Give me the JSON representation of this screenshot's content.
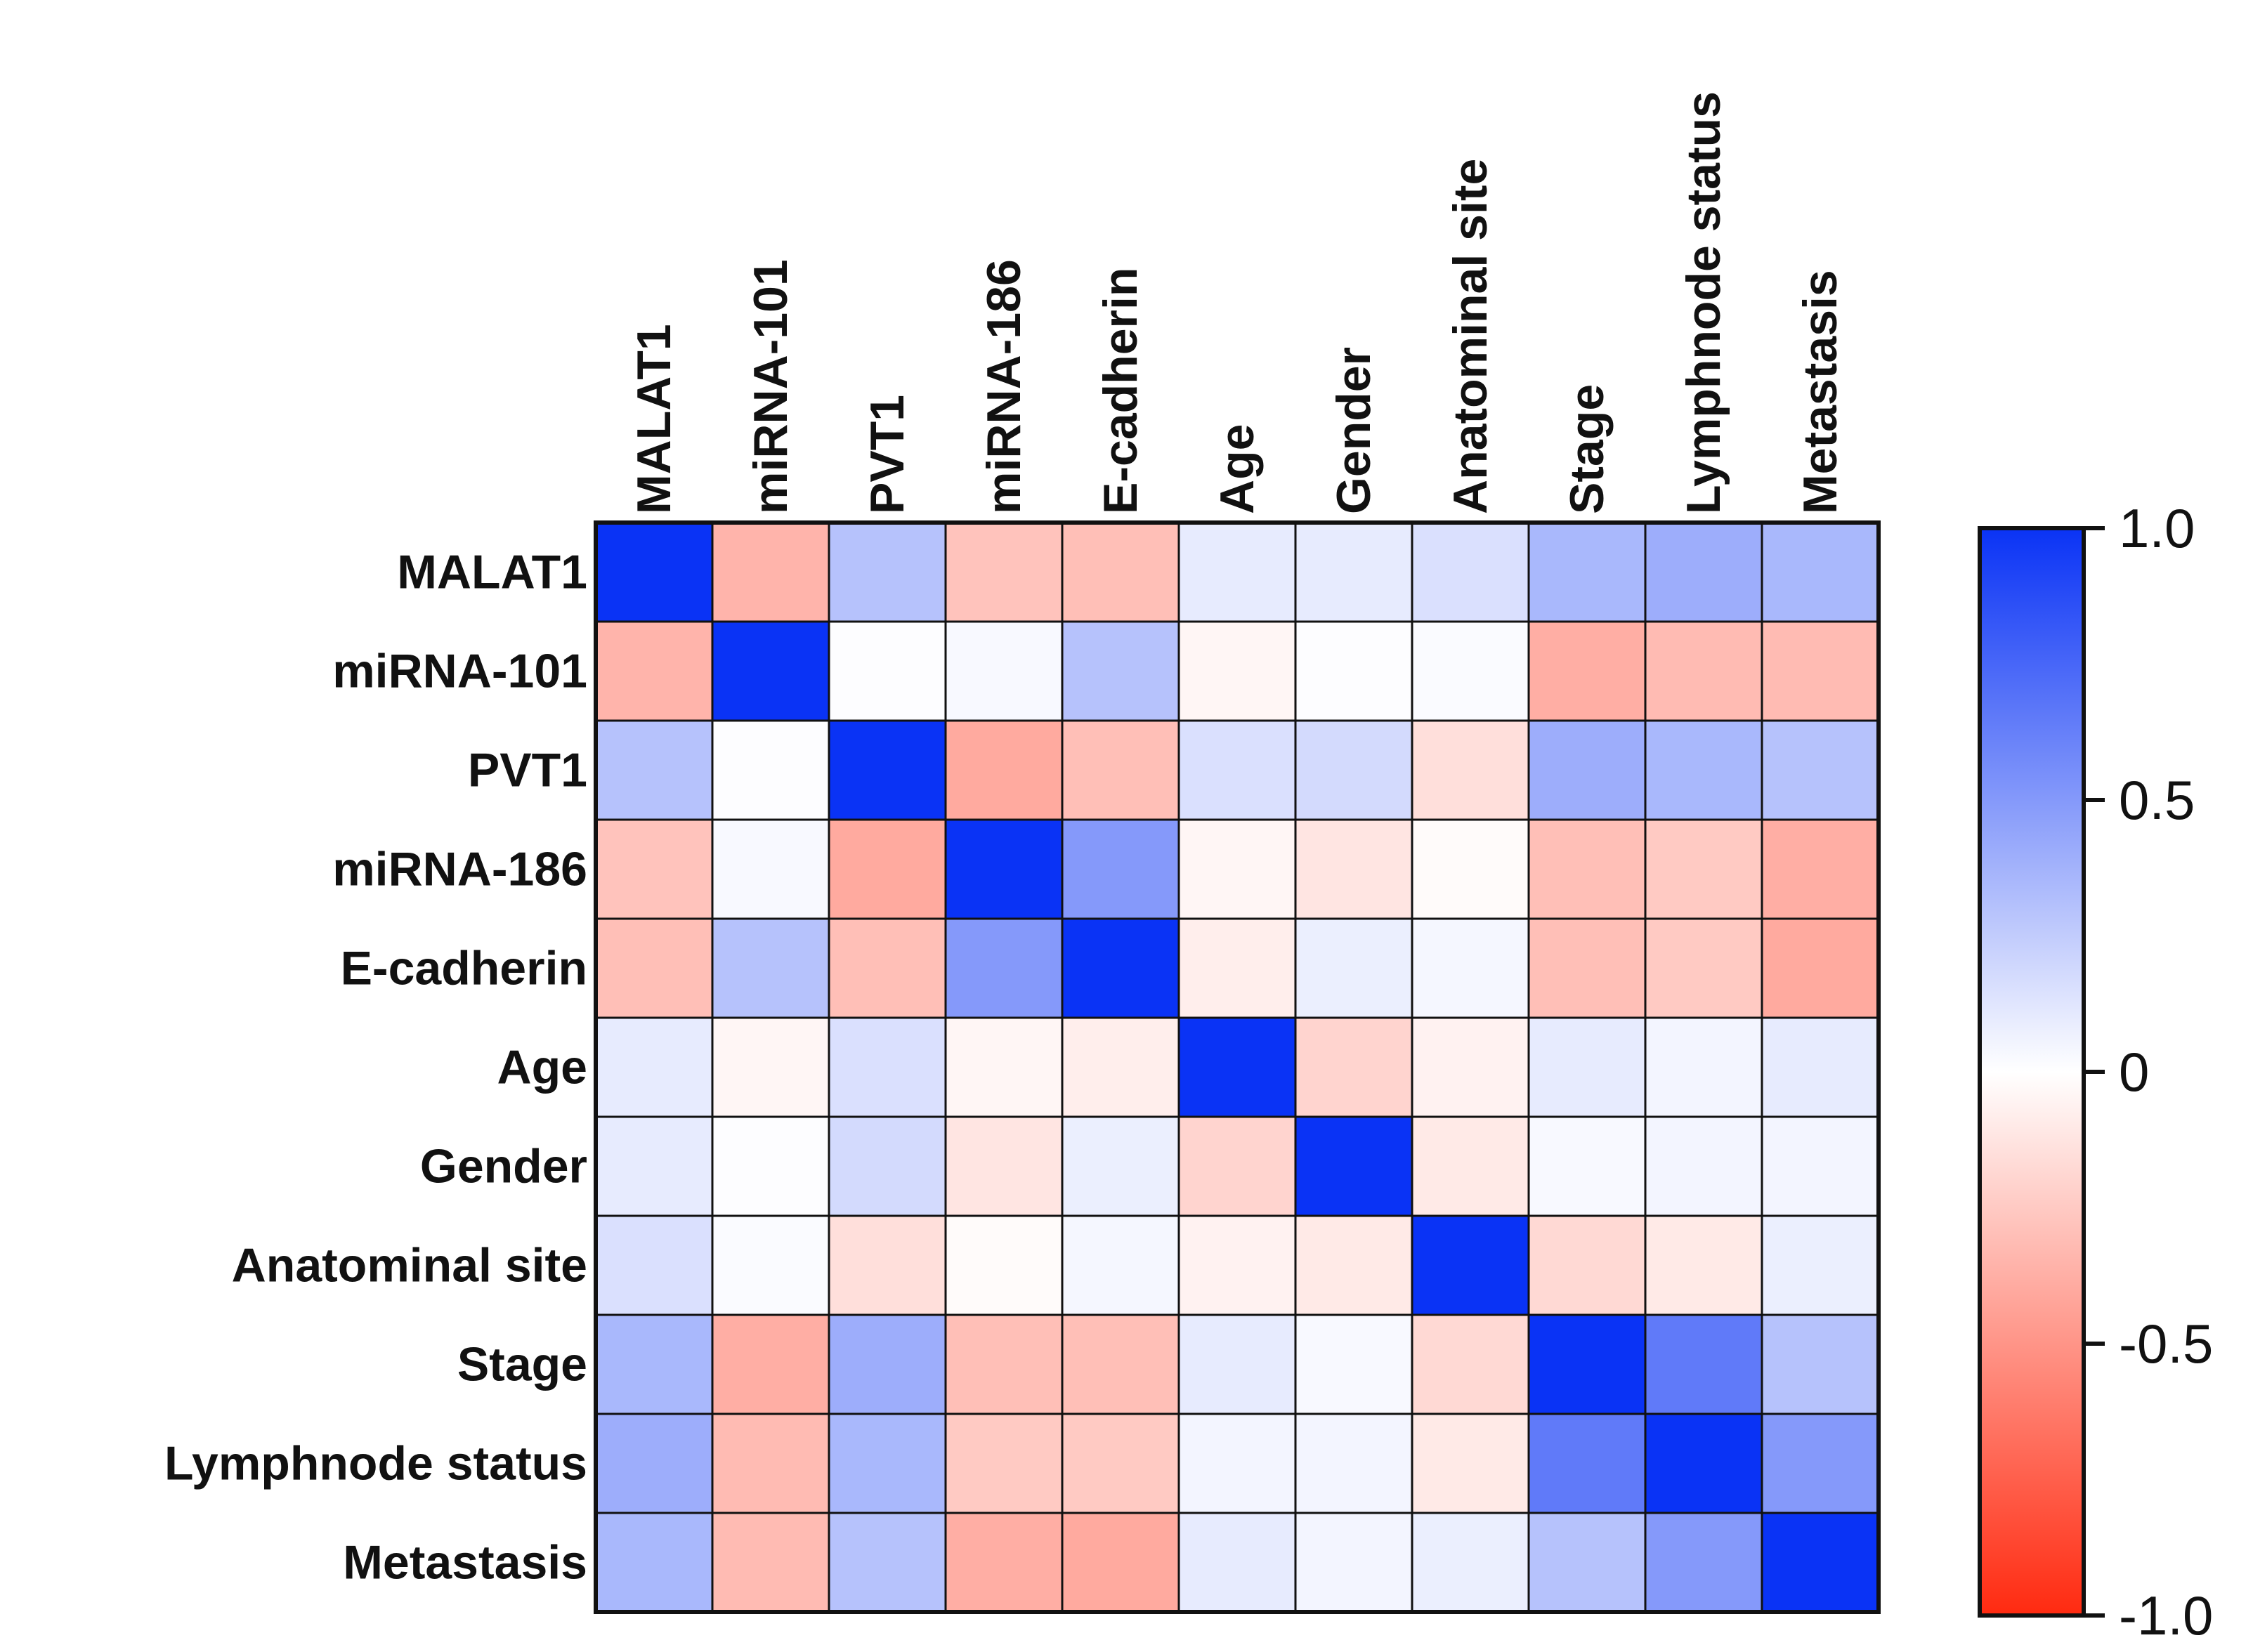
{
  "chart_data": {
    "type": "heatmap",
    "title": "",
    "row_labels": [
      "MALAT1",
      "miRNA-101",
      "PVT1",
      "miRNA-186",
      "E-cadherin",
      "Age",
      "Gender",
      "Anatominal site",
      "Stage",
      "Lymphnode status",
      "Metastasis"
    ],
    "col_labels": [
      "MALAT1",
      "miRNA-101",
      "PVT1",
      "miRNA-186",
      "E-cadherin",
      "Age",
      "Gender",
      "Anatominal site",
      "Stage",
      "Lymphnode status",
      "Metastasis"
    ],
    "values": [
      [
        1.0,
        -0.35,
        0.3,
        -0.28,
        -0.3,
        0.1,
        0.1,
        0.15,
        0.35,
        0.4,
        0.35
      ],
      [
        -0.35,
        1.0,
        0.01,
        0.03,
        0.3,
        -0.04,
        0.01,
        0.02,
        -0.38,
        -0.32,
        -0.32
      ],
      [
        0.3,
        0.01,
        1.0,
        -0.4,
        -0.3,
        0.15,
        0.18,
        -0.15,
        0.4,
        0.35,
        0.3
      ],
      [
        -0.28,
        0.03,
        -0.4,
        1.0,
        0.5,
        -0.04,
        -0.12,
        -0.02,
        -0.3,
        -0.25,
        -0.38
      ],
      [
        -0.3,
        0.3,
        -0.3,
        0.5,
        1.0,
        -0.08,
        0.08,
        0.04,
        -0.3,
        -0.25,
        -0.4
      ],
      [
        0.1,
        -0.04,
        0.15,
        -0.04,
        -0.08,
        1.0,
        -0.2,
        -0.06,
        0.1,
        0.05,
        0.1
      ],
      [
        0.1,
        0.01,
        0.18,
        -0.12,
        0.08,
        -0.2,
        1.0,
        -0.1,
        0.03,
        0.05,
        0.05
      ],
      [
        0.15,
        0.02,
        -0.15,
        -0.02,
        0.04,
        -0.06,
        -0.1,
        1.0,
        -0.18,
        -0.1,
        0.08
      ],
      [
        0.35,
        -0.38,
        0.4,
        -0.3,
        -0.3,
        0.1,
        0.03,
        -0.18,
        1.0,
        0.65,
        0.3
      ],
      [
        0.4,
        -0.32,
        0.35,
        -0.25,
        -0.25,
        0.05,
        0.05,
        -0.1,
        0.65,
        1.0,
        0.5
      ],
      [
        0.35,
        -0.32,
        0.3,
        -0.38,
        -0.4,
        0.1,
        0.05,
        0.08,
        0.3,
        0.5,
        1.0
      ]
    ],
    "colorbar": {
      "min": -1.0,
      "max": 1.0,
      "ticks": [
        1.0,
        0.5,
        0,
        -0.5,
        -1.0
      ],
      "tick_labels": [
        "1.0",
        "0.5",
        "0",
        "-0.5",
        "-1.0"
      ],
      "colors": {
        "high": "#0a33f5",
        "mid": "#ffffff",
        "low": "#ff2a10"
      }
    }
  }
}
